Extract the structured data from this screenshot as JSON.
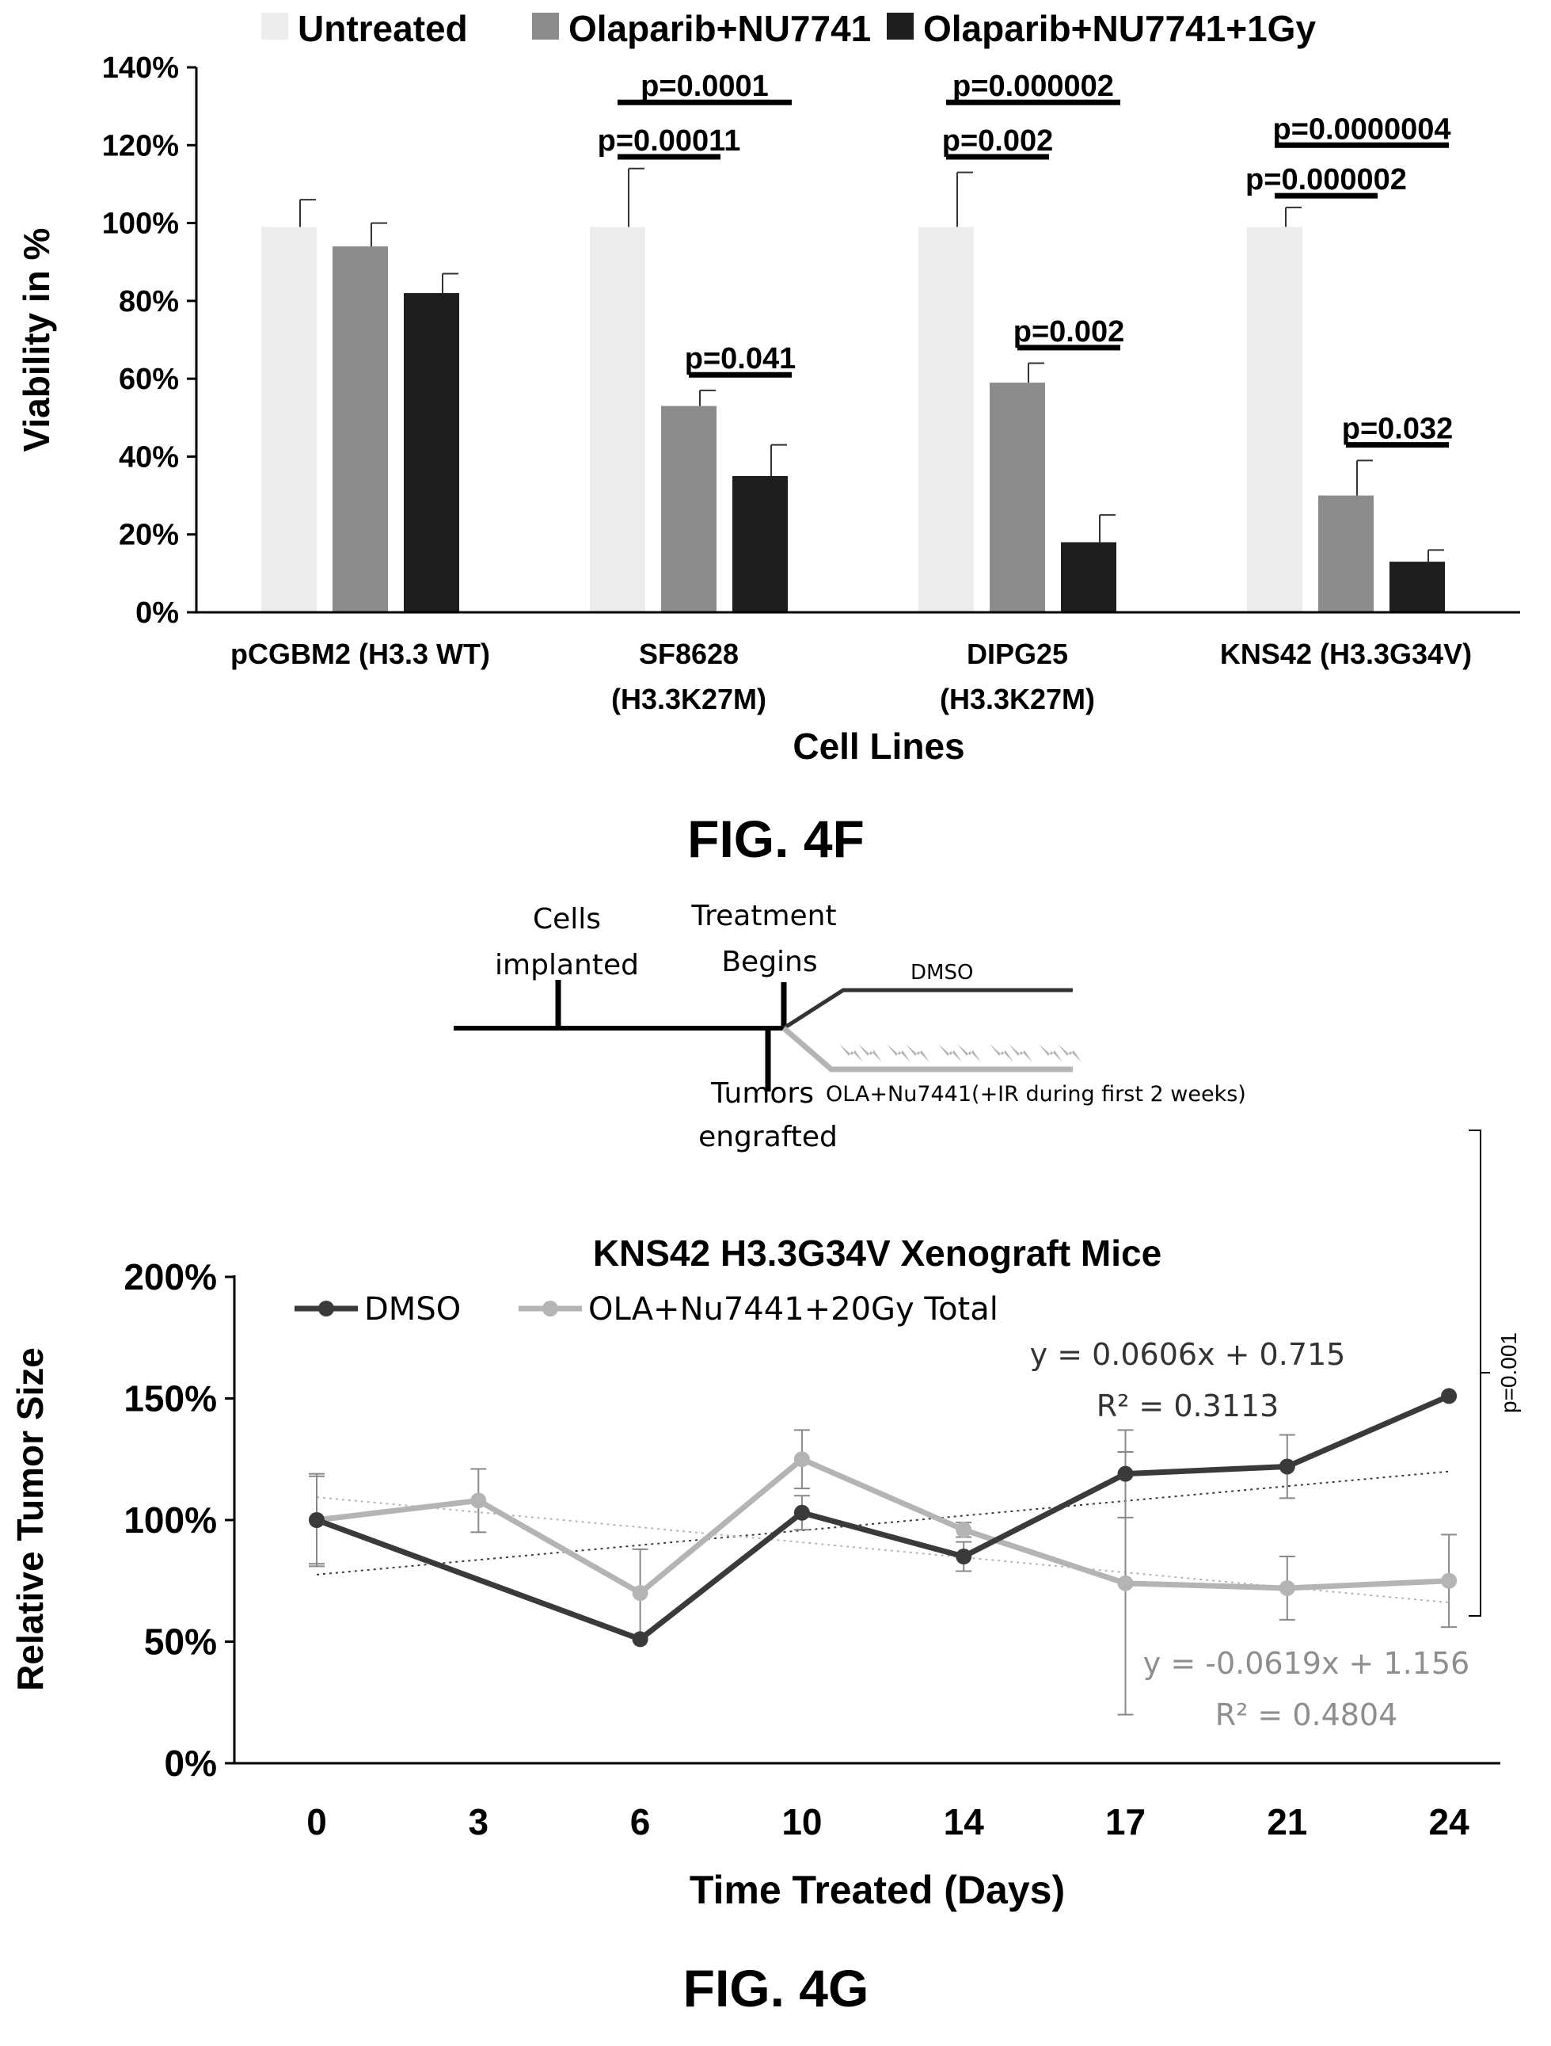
{
  "fig4f": {
    "caption": "FIG. 4F",
    "chart_data": {
      "type": "bar",
      "xlabel": "Cell Lines",
      "ylabel": "Viability in %",
      "ylim": [
        0,
        140
      ],
      "yticks": [
        "0%",
        "20%",
        "40%",
        "60%",
        "80%",
        "100%",
        "120%",
        "140%"
      ],
      "categories": [
        [
          "pCGBM2 (H3.3 WT)"
        ],
        [
          "SF8628",
          "(H3.3K27M)"
        ],
        [
          "DIPG25",
          "(H3.3K27M)"
        ],
        [
          "KNS42 (H3.3G34V)"
        ]
      ],
      "series": [
        {
          "name": "Untreated",
          "color": "#ececec",
          "values": [
            99,
            99,
            99,
            99
          ],
          "err": [
            7,
            15,
            14,
            5
          ]
        },
        {
          "name": "Olaparib+NU7741",
          "color": "#8c8c8c",
          "values": [
            94,
            53,
            59,
            30
          ],
          "err": [
            6,
            4,
            5,
            9
          ]
        },
        {
          "name": "Olaparib+NU7741+1Gy",
          "color": "#1e1e1e",
          "values": [
            82,
            35,
            18,
            13
          ],
          "err": [
            5,
            8,
            7,
            3
          ]
        }
      ],
      "legend": "top",
      "annotations": [
        {
          "label": "p=0.0001",
          "group": 1,
          "from": 0,
          "to": 2,
          "level": 131
        },
        {
          "label": "p=0.00011",
          "group": 1,
          "from": 0,
          "to": 1,
          "level": 117
        },
        {
          "label": "p=0.041",
          "group": 1,
          "from": 1,
          "to": 2,
          "level": 61
        },
        {
          "label": "p=0.000002",
          "group": 2,
          "from": 0,
          "to": 2,
          "level": 131
        },
        {
          "label": "p=0.002",
          "group": 2,
          "from": 0,
          "to": 1,
          "level": 117
        },
        {
          "label": "p=0.002",
          "group": 2,
          "from": 1,
          "to": 2,
          "level": 68
        },
        {
          "label": "p=0.0000004",
          "group": 3,
          "from": 0,
          "to": 2,
          "level": 120
        },
        {
          "label": "p=0.000002",
          "group": 3,
          "from": 0,
          "to": 1,
          "level": 107
        },
        {
          "label": "p=0.032",
          "group": 3,
          "from": 1,
          "to": 2,
          "level": 43
        }
      ]
    }
  },
  "timeline": {
    "labels": {
      "cells_implanted": [
        "Cells",
        "implanted"
      ],
      "treatment_begins": [
        "Treatment",
        "Begins"
      ],
      "tumors_engrafted": [
        "Tumors",
        "engrafted"
      ],
      "dmso": "DMSO",
      "treatment_arm": "OLA+Nu7441(+IR during first 2 weeks)"
    }
  },
  "fig4g": {
    "caption": "FIG. 4G",
    "chart_data": {
      "type": "line",
      "title": "KNS42 H3.3G34V Xenograft Mice",
      "xlabel": "Time Treated (Days)",
      "ylabel": "Relative Tumor Size",
      "x": [
        0,
        3,
        6,
        10,
        14,
        17,
        21,
        24
      ],
      "ylim": [
        0,
        200
      ],
      "yticks": [
        "0%",
        "50%",
        "100%",
        "150%",
        "200%"
      ],
      "series": [
        {
          "name": "DMSO",
          "color": "#3a3a3a",
          "values": [
            100,
            null,
            51,
            103,
            85,
            119,
            122,
            151
          ],
          "err": [
            19,
            null,
            null,
            7,
            6,
            18,
            13,
            null
          ],
          "trend": {
            "slope": 0.0606,
            "intercept": 0.715
          },
          "equation": "y = 0.0606x + 0.715",
          "r2": "R² = 0.3113"
        },
        {
          "name": "OLA+Nu7441+20Gy Total",
          "color": "#b4b4b4",
          "values": [
            100,
            108,
            70,
            125,
            96,
            74,
            72,
            75
          ],
          "err": [
            18,
            13,
            18,
            12,
            3,
            54,
            13,
            19
          ],
          "trend": {
            "slope": -0.0619,
            "intercept": 1.156
          },
          "equation": "y = -0.0619x + 1.156",
          "r2": "R² = 0.4804"
        }
      ],
      "annotations": [
        {
          "label": "p=0.001"
        }
      ],
      "legend": "top-left"
    }
  }
}
